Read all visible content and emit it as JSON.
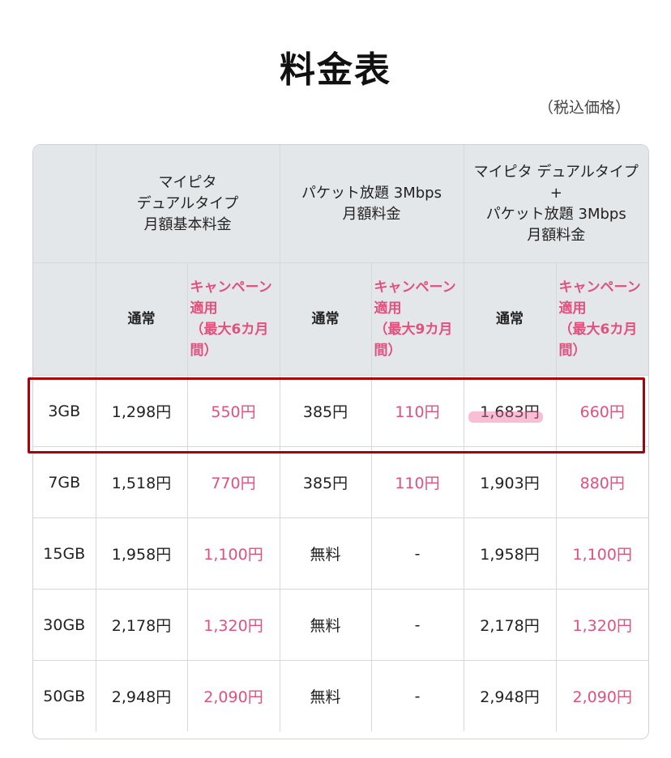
{
  "page": {
    "title": "料金表",
    "tax_note": "（税込価格）"
  },
  "table": {
    "group_headers": [
      "マイピタ\nデュアルタイプ\n月額基本料金",
      "パケット放題 3Mbps\n月額料金",
      "マイピタ デュアルタイプ\n+\nパケット放題 3Mbps\n月額料金"
    ],
    "sub_headers": {
      "normal": "通常",
      "campaign_6": "キャンペーン適用\n（最大6カ月間）",
      "campaign_9": "キャンペーン適用\n（最大9カ月間）"
    },
    "rows": [
      {
        "plan": "3GB",
        "base_normal": "1,298円",
        "base_campaign": "550円",
        "packet_normal": "385円",
        "packet_campaign": "110円",
        "total_normal": "1,683円",
        "total_campaign": "660円"
      },
      {
        "plan": "7GB",
        "base_normal": "1,518円",
        "base_campaign": "770円",
        "packet_normal": "385円",
        "packet_campaign": "110円",
        "total_normal": "1,903円",
        "total_campaign": "880円"
      },
      {
        "plan": "15GB",
        "base_normal": "1,958円",
        "base_campaign": "1,100円",
        "packet_normal": "無料",
        "packet_campaign": "-",
        "total_normal": "1,958円",
        "total_campaign": "1,100円"
      },
      {
        "plan": "30GB",
        "base_normal": "2,178円",
        "base_campaign": "1,320円",
        "packet_normal": "無料",
        "packet_campaign": "-",
        "total_normal": "2,178円",
        "total_campaign": "1,320円"
      },
      {
        "plan": "50GB",
        "base_normal": "2,948円",
        "base_campaign": "2,090円",
        "packet_normal": "無料",
        "packet_campaign": "-",
        "total_normal": "2,948円",
        "total_campaign": "2,090円"
      }
    ]
  },
  "colors": {
    "campaign": "#e0517e",
    "header_bg": "#e4e7ea",
    "highlight_border": "#a4050d"
  }
}
